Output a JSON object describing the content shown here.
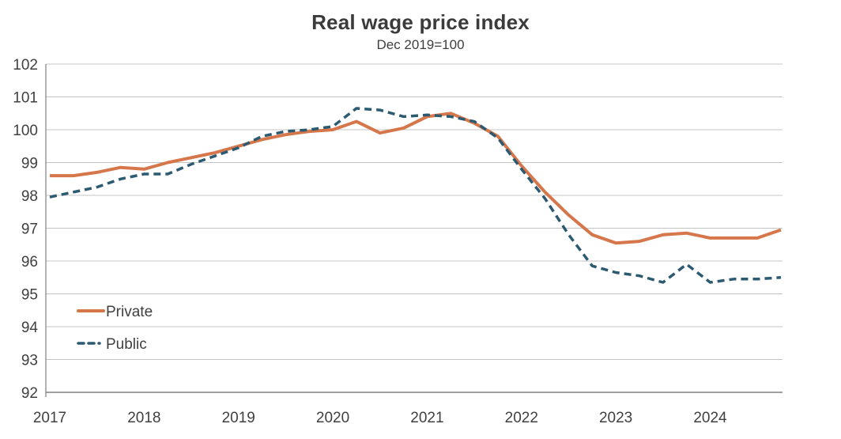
{
  "title": "Real wage price index",
  "subtitle": "Dec 2019=100",
  "colors": {
    "background": "#FFFFFF",
    "title_text": "#3B3B3B",
    "axis_text": "#404040",
    "gridline": "#C4C4C4",
    "axis_line": "#808080",
    "private_series": "#D5764B",
    "public_series": "#2B5A71"
  },
  "legend": {
    "position": "inside-bottom-left",
    "items": [
      {
        "label": "Private",
        "style": "solid-line"
      },
      {
        "label": "Public",
        "style": "dashed-line"
      }
    ]
  },
  "y_axis": {
    "tick_labels": [
      "102",
      "101",
      "100",
      "99",
      "98",
      "97",
      "96",
      "95",
      "94",
      "93",
      "92"
    ]
  },
  "x_axis": {
    "tick_labels": [
      "2017",
      "2018",
      "2019",
      "2020",
      "2021",
      "2022",
      "2023",
      "2024"
    ]
  },
  "chart_data": {
    "type": "line",
    "title": "Real wage price index",
    "subtitle": "Dec 2019=100",
    "xlabel": "",
    "ylabel": "",
    "ylim": [
      92,
      102
    ],
    "yticks": [
      102,
      101,
      100,
      99,
      98,
      97,
      96,
      95,
      94,
      93,
      92
    ],
    "grid": "horizontal",
    "legend_position": "inside-bottom-left",
    "x": [
      "Mar 2017",
      "Jun 2017",
      "Sep 2017",
      "Dec 2017",
      "Mar 2018",
      "Jun 2018",
      "Sep 2018",
      "Dec 2018",
      "Mar 2019",
      "Jun 2019",
      "Sep 2019",
      "Dec 2019",
      "Mar 2020",
      "Jun 2020",
      "Sep 2020",
      "Dec 2020",
      "Mar 2021",
      "Jun 2021",
      "Sep 2021",
      "Dec 2021",
      "Mar 2022",
      "Jun 2022",
      "Sep 2022",
      "Dec 2022",
      "Mar 2023",
      "Jun 2023",
      "Sep 2023",
      "Dec 2023",
      "Mar 2024",
      "Jun 2024",
      "Sep 2024",
      "Dec 2024"
    ],
    "xticks": [
      {
        "label": "2017",
        "index": 0
      },
      {
        "label": "2018",
        "index": 4
      },
      {
        "label": "2019",
        "index": 8
      },
      {
        "label": "2020",
        "index": 12
      },
      {
        "label": "2021",
        "index": 16
      },
      {
        "label": "2022",
        "index": 20
      },
      {
        "label": "2023",
        "index": 24
      },
      {
        "label": "2024",
        "index": 28
      }
    ],
    "series": [
      {
        "name": "Private",
        "color": "#D5764B",
        "line_style": "solid",
        "values": [
          98.6,
          98.6,
          98.7,
          98.85,
          98.8,
          99.0,
          99.15,
          99.3,
          99.5,
          99.7,
          99.85,
          99.95,
          100.0,
          100.25,
          99.9,
          100.05,
          100.4,
          100.5,
          100.2,
          99.8,
          98.9,
          98.1,
          97.4,
          96.8,
          96.55,
          96.6,
          96.8,
          96.85,
          96.7,
          96.7,
          96.7,
          96.95
        ]
      },
      {
        "name": "Public",
        "color": "#2B5A71",
        "line_style": "dashed",
        "values": [
          97.95,
          98.1,
          98.25,
          98.5,
          98.65,
          98.65,
          98.95,
          99.2,
          99.45,
          99.8,
          99.95,
          100.0,
          100.1,
          100.65,
          100.6,
          100.4,
          100.45,
          100.4,
          100.25,
          99.75,
          98.8,
          97.9,
          96.8,
          95.85,
          95.65,
          95.55,
          95.35,
          95.9,
          95.35,
          95.45,
          95.45,
          95.5
        ]
      }
    ]
  }
}
